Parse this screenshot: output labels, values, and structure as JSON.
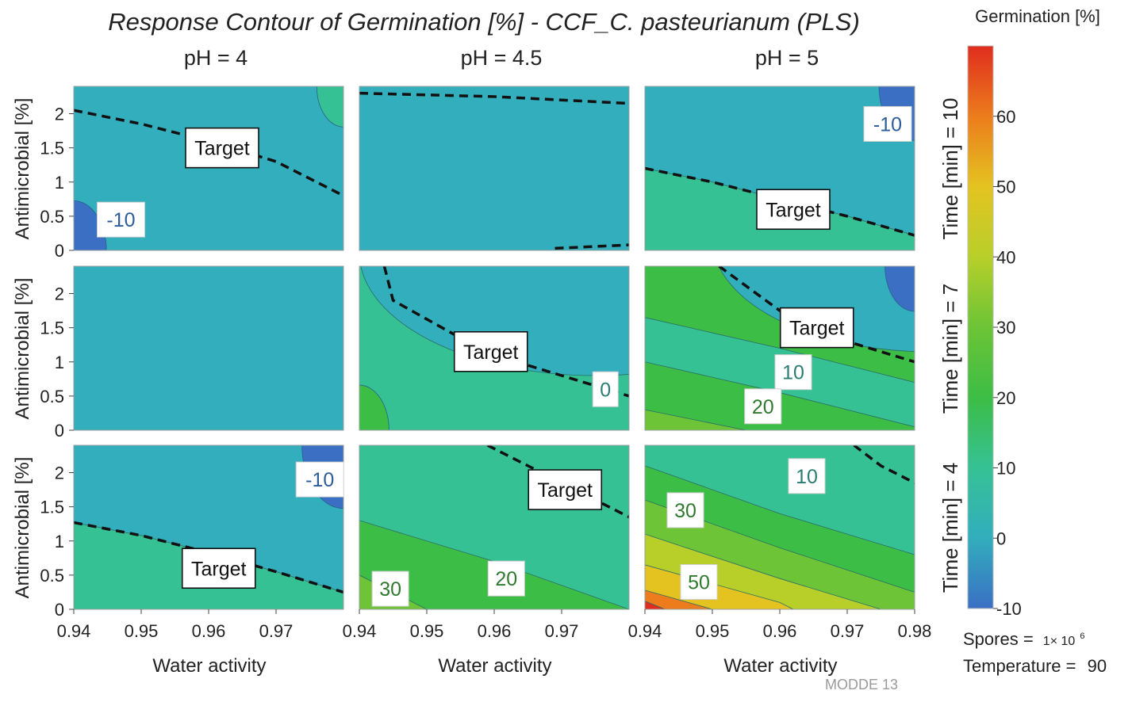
{
  "chart_data": {
    "type": "contour",
    "title": "Response Contour of Germination [%] - CCF_C. pasteurianum (PLS)",
    "column_titles": [
      "pH = 4",
      "pH = 4.5",
      "pH = 5"
    ],
    "row_titles": [
      "Time [min] = 10",
      "Time [min] = 7",
      "Time [min] = 4"
    ],
    "xlabel": "Water activity",
    "ylabel": "Antimicrobial [%]",
    "xlim": [
      0.94,
      0.98
    ],
    "ylim": [
      0,
      2.4
    ],
    "x_ticks": [
      "0.94",
      "0.95",
      "0.96",
      "0.97"
    ],
    "x_ticks_last": "0.98",
    "y_ticks": [
      "0",
      "0.5",
      "1",
      "1.5",
      "2"
    ],
    "colorbar": {
      "title": "Germination [%]",
      "range": [
        -10,
        70
      ],
      "ticks": [
        "-10",
        "0",
        "10",
        "20",
        "30",
        "40",
        "50",
        "60"
      ],
      "colors": {
        "-10": "#3a6fc4",
        "0": "#32aebd",
        "10": "#36c195",
        "20": "#3cbd45",
        "30": "#6cc436",
        "40": "#b8cf2a",
        "50": "#e4c320",
        "60": "#ec7c1c",
        "70": "#e02d1e"
      }
    },
    "fixed_factors": [
      {
        "label": "Spores =",
        "value": "1× 10",
        "exponent": "6"
      },
      {
        "label": "Temperature =",
        "value": "90"
      }
    ],
    "target_label": "Target",
    "panels": [
      {
        "row": 0,
        "col": 0,
        "base_level": 0,
        "regions": [
          {
            "level": -10,
            "corner": "bottom-left",
            "radius": 0.55
          },
          {
            "level": 10,
            "corner": "top-right",
            "radius": 0.45
          }
        ],
        "target_curve": [
          [
            0.94,
            2.05
          ],
          [
            0.95,
            1.85
          ],
          [
            0.96,
            1.6
          ],
          [
            0.97,
            1.3
          ],
          [
            0.98,
            0.8
          ]
        ],
        "labels": [
          {
            "text": "Target",
            "x": 0.962,
            "y": 1.5
          },
          {
            "text": "-10",
            "x": 0.947,
            "y": 0.45
          }
        ]
      },
      {
        "row": 0,
        "col": 1,
        "base_level": 0,
        "regions": [],
        "target_curve": [
          [
            0.94,
            2.3
          ],
          [
            0.96,
            2.25
          ],
          [
            0.98,
            2.15
          ]
        ],
        "target_curve_2": [
          [
            0.969,
            0.03
          ],
          [
            0.98,
            0.08
          ]
        ],
        "labels": []
      },
      {
        "row": 0,
        "col": 2,
        "base_level": 0,
        "regions": [
          {
            "level": -10,
            "corner": "top-right",
            "radius": 0.6
          }
        ],
        "band_below": {
          "level": 10,
          "curve": [
            [
              0.94,
              1.2
            ],
            [
              0.95,
              1.0
            ],
            [
              0.96,
              0.75
            ],
            [
              0.97,
              0.5
            ],
            [
              0.98,
              0.22
            ]
          ]
        },
        "target_curve": [
          [
            0.94,
            1.2
          ],
          [
            0.95,
            1.0
          ],
          [
            0.96,
            0.75
          ],
          [
            0.97,
            0.5
          ],
          [
            0.98,
            0.22
          ]
        ],
        "labels": [
          {
            "text": "-10",
            "x": 0.976,
            "y": 1.85
          },
          {
            "text": "Target",
            "x": 0.962,
            "y": 0.6
          }
        ]
      },
      {
        "row": 1,
        "col": 0,
        "base_level": 0,
        "regions": [],
        "target_curve": [],
        "labels": []
      },
      {
        "row": 1,
        "col": 1,
        "base_level": 10,
        "regions": [
          {
            "level": 0,
            "ellipse": [
              0.975,
              2.6,
              0.035,
              1.8
            ]
          },
          {
            "level": 20,
            "corner": "bottom-left",
            "radius": 0.5
          }
        ],
        "target_curve": [
          [
            0.9437,
            2.4
          ],
          [
            0.945,
            1.9
          ],
          [
            0.955,
            1.35
          ],
          [
            0.965,
            0.95
          ],
          [
            0.98,
            0.5
          ]
        ],
        "labels": [
          {
            "text": "Target",
            "x": 0.9595,
            "y": 1.15
          },
          {
            "text": "0",
            "x": 0.9765,
            "y": 0.6
          }
        ]
      },
      {
        "row": 1,
        "col": 2,
        "base_level": 20,
        "regions": [
          {
            "level": 0,
            "ellipse": [
              0.982,
              2.8,
              0.032,
              1.65
            ]
          },
          {
            "level": -10,
            "corner": "top-right",
            "radius": 0.5
          }
        ],
        "bands": [
          {
            "level": 10,
            "curve": [
              [
                0.94,
                1.65
              ],
              [
                0.96,
                1.2
              ],
              [
                0.98,
                0.7
              ]
            ]
          },
          {
            "level": 20,
            "curve": [
              [
                0.94,
                1.0
              ],
              [
                0.96,
                0.55
              ],
              [
                0.98,
                0.05
              ]
            ]
          },
          {
            "level": 30,
            "curve": [
              [
                0.94,
                0.3
              ],
              [
                0.955,
                0.0
              ]
            ]
          }
        ],
        "target_curve": [
          [
            0.951,
            2.4
          ],
          [
            0.96,
            1.75
          ],
          [
            0.97,
            1.3
          ],
          [
            0.98,
            1.0
          ]
        ],
        "labels": [
          {
            "text": "Target",
            "x": 0.9655,
            "y": 1.5
          },
          {
            "text": "10",
            "x": 0.962,
            "y": 0.85
          },
          {
            "text": "20",
            "x": 0.9575,
            "y": 0.35
          }
        ]
      },
      {
        "row": 2,
        "col": 0,
        "base_level": 0,
        "regions": [
          {
            "level": -10,
            "corner": "top-right",
            "radius": 0.7
          }
        ],
        "band_below": {
          "level": 10,
          "curve": [
            [
              0.94,
              1.27
            ],
            [
              0.95,
              1.08
            ],
            [
              0.96,
              0.83
            ],
            [
              0.97,
              0.55
            ],
            [
              0.98,
              0.25
            ]
          ]
        },
        "target_curve": [
          [
            0.94,
            1.27
          ],
          [
            0.95,
            1.08
          ],
          [
            0.96,
            0.83
          ],
          [
            0.97,
            0.55
          ],
          [
            0.98,
            0.25
          ]
        ],
        "labels": [
          {
            "text": "-10",
            "x": 0.9765,
            "y": 1.9
          },
          {
            "text": "Target",
            "x": 0.9615,
            "y": 0.6
          }
        ]
      },
      {
        "row": 2,
        "col": 1,
        "base_level": 10,
        "regions": [],
        "bands": [
          {
            "level": 20,
            "curve": [
              [
                0.94,
                1.3
              ],
              [
                0.96,
                0.7
              ],
              [
                0.98,
                0.0
              ]
            ]
          },
          {
            "level": 30,
            "curve": [
              [
                0.94,
                0.5
              ],
              [
                0.95,
                0.0
              ]
            ]
          }
        ],
        "target_curve": [
          [
            0.959,
            2.4
          ],
          [
            0.965,
            2.1
          ],
          [
            0.972,
            1.75
          ],
          [
            0.98,
            1.35
          ]
        ],
        "labels": [
          {
            "text": "Target",
            "x": 0.9705,
            "y": 1.75
          },
          {
            "text": "20",
            "x": 0.9618,
            "y": 0.45
          },
          {
            "text": "30",
            "x": 0.9446,
            "y": 0.3
          }
        ]
      },
      {
        "row": 2,
        "col": 2,
        "base_level": 10,
        "regions": [],
        "bands": [
          {
            "level": 20,
            "curve": [
              [
                0.94,
                2.1
              ],
              [
                0.96,
                1.4
              ],
              [
                0.98,
                0.8
              ]
            ]
          },
          {
            "level": 30,
            "curve": [
              [
                0.94,
                1.6
              ],
              [
                0.96,
                0.9
              ],
              [
                0.98,
                0.25
              ]
            ]
          },
          {
            "level": 40,
            "curve": [
              [
                0.94,
                1.1
              ],
              [
                0.96,
                0.45
              ],
              [
                0.975,
                0.0
              ]
            ]
          },
          {
            "level": 50,
            "curve": [
              [
                0.94,
                0.65
              ],
              [
                0.96,
                0.1
              ],
              [
                0.962,
                0.0
              ]
            ]
          },
          {
            "level": 60,
            "curve": [
              [
                0.94,
                0.28
              ],
              [
                0.95,
                0.0
              ]
            ]
          },
          {
            "level": 70,
            "curve": [
              [
                0.94,
                0.12
              ],
              [
                0.943,
                0.0
              ]
            ]
          }
        ],
        "target_curve": [
          [
            0.971,
            2.4
          ],
          [
            0.975,
            2.1
          ],
          [
            0.98,
            1.85
          ]
        ],
        "labels": [
          {
            "text": "10",
            "x": 0.964,
            "y": 1.95
          },
          {
            "text": "30",
            "x": 0.946,
            "y": 1.45
          },
          {
            "text": "50",
            "x": 0.948,
            "y": 0.4
          }
        ]
      }
    ]
  },
  "watermark": "MODDE 13"
}
